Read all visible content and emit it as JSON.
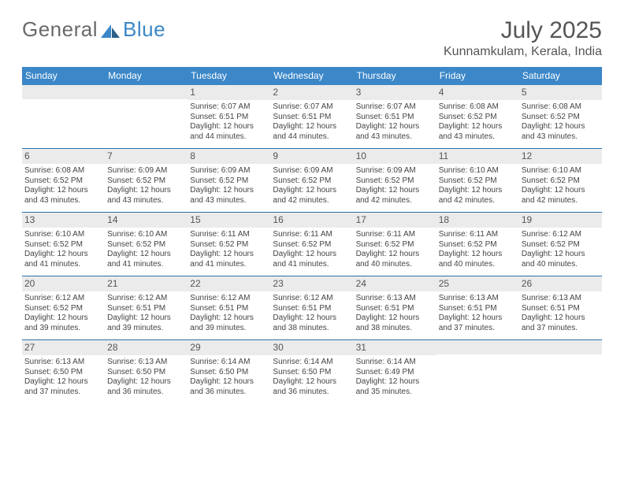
{
  "brand": {
    "part1": "General",
    "part2": "Blue"
  },
  "title": {
    "month": "July 2025",
    "location": "Kunnamkulam, Kerala, India"
  },
  "colors": {
    "accent": "#3b87c8",
    "row_bg": "#ebebeb",
    "divider": "#2f6fa7",
    "page_bg": "#ffffff",
    "header_text": "#555555",
    "body_text": "#333333"
  },
  "dow": [
    "Sunday",
    "Monday",
    "Tuesday",
    "Wednesday",
    "Thursday",
    "Friday",
    "Saturday"
  ],
  "weeks": [
    [
      null,
      null,
      {
        "n": "1",
        "sr": "Sunrise: 6:07 AM",
        "ss": "Sunset: 6:51 PM",
        "d1": "Daylight: 12 hours",
        "d2": "and 44 minutes."
      },
      {
        "n": "2",
        "sr": "Sunrise: 6:07 AM",
        "ss": "Sunset: 6:51 PM",
        "d1": "Daylight: 12 hours",
        "d2": "and 44 minutes."
      },
      {
        "n": "3",
        "sr": "Sunrise: 6:07 AM",
        "ss": "Sunset: 6:51 PM",
        "d1": "Daylight: 12 hours",
        "d2": "and 43 minutes."
      },
      {
        "n": "4",
        "sr": "Sunrise: 6:08 AM",
        "ss": "Sunset: 6:52 PM",
        "d1": "Daylight: 12 hours",
        "d2": "and 43 minutes."
      },
      {
        "n": "5",
        "sr": "Sunrise: 6:08 AM",
        "ss": "Sunset: 6:52 PM",
        "d1": "Daylight: 12 hours",
        "d2": "and 43 minutes."
      }
    ],
    [
      {
        "n": "6",
        "sr": "Sunrise: 6:08 AM",
        "ss": "Sunset: 6:52 PM",
        "d1": "Daylight: 12 hours",
        "d2": "and 43 minutes."
      },
      {
        "n": "7",
        "sr": "Sunrise: 6:09 AM",
        "ss": "Sunset: 6:52 PM",
        "d1": "Daylight: 12 hours",
        "d2": "and 43 minutes."
      },
      {
        "n": "8",
        "sr": "Sunrise: 6:09 AM",
        "ss": "Sunset: 6:52 PM",
        "d1": "Daylight: 12 hours",
        "d2": "and 43 minutes."
      },
      {
        "n": "9",
        "sr": "Sunrise: 6:09 AM",
        "ss": "Sunset: 6:52 PM",
        "d1": "Daylight: 12 hours",
        "d2": "and 42 minutes."
      },
      {
        "n": "10",
        "sr": "Sunrise: 6:09 AM",
        "ss": "Sunset: 6:52 PM",
        "d1": "Daylight: 12 hours",
        "d2": "and 42 minutes."
      },
      {
        "n": "11",
        "sr": "Sunrise: 6:10 AM",
        "ss": "Sunset: 6:52 PM",
        "d1": "Daylight: 12 hours",
        "d2": "and 42 minutes."
      },
      {
        "n": "12",
        "sr": "Sunrise: 6:10 AM",
        "ss": "Sunset: 6:52 PM",
        "d1": "Daylight: 12 hours",
        "d2": "and 42 minutes."
      }
    ],
    [
      {
        "n": "13",
        "sr": "Sunrise: 6:10 AM",
        "ss": "Sunset: 6:52 PM",
        "d1": "Daylight: 12 hours",
        "d2": "and 41 minutes."
      },
      {
        "n": "14",
        "sr": "Sunrise: 6:10 AM",
        "ss": "Sunset: 6:52 PM",
        "d1": "Daylight: 12 hours",
        "d2": "and 41 minutes."
      },
      {
        "n": "15",
        "sr": "Sunrise: 6:11 AM",
        "ss": "Sunset: 6:52 PM",
        "d1": "Daylight: 12 hours",
        "d2": "and 41 minutes."
      },
      {
        "n": "16",
        "sr": "Sunrise: 6:11 AM",
        "ss": "Sunset: 6:52 PM",
        "d1": "Daylight: 12 hours",
        "d2": "and 41 minutes."
      },
      {
        "n": "17",
        "sr": "Sunrise: 6:11 AM",
        "ss": "Sunset: 6:52 PM",
        "d1": "Daylight: 12 hours",
        "d2": "and 40 minutes."
      },
      {
        "n": "18",
        "sr": "Sunrise: 6:11 AM",
        "ss": "Sunset: 6:52 PM",
        "d1": "Daylight: 12 hours",
        "d2": "and 40 minutes."
      },
      {
        "n": "19",
        "sr": "Sunrise: 6:12 AM",
        "ss": "Sunset: 6:52 PM",
        "d1": "Daylight: 12 hours",
        "d2": "and 40 minutes."
      }
    ],
    [
      {
        "n": "20",
        "sr": "Sunrise: 6:12 AM",
        "ss": "Sunset: 6:52 PM",
        "d1": "Daylight: 12 hours",
        "d2": "and 39 minutes."
      },
      {
        "n": "21",
        "sr": "Sunrise: 6:12 AM",
        "ss": "Sunset: 6:51 PM",
        "d1": "Daylight: 12 hours",
        "d2": "and 39 minutes."
      },
      {
        "n": "22",
        "sr": "Sunrise: 6:12 AM",
        "ss": "Sunset: 6:51 PM",
        "d1": "Daylight: 12 hours",
        "d2": "and 39 minutes."
      },
      {
        "n": "23",
        "sr": "Sunrise: 6:12 AM",
        "ss": "Sunset: 6:51 PM",
        "d1": "Daylight: 12 hours",
        "d2": "and 38 minutes."
      },
      {
        "n": "24",
        "sr": "Sunrise: 6:13 AM",
        "ss": "Sunset: 6:51 PM",
        "d1": "Daylight: 12 hours",
        "d2": "and 38 minutes."
      },
      {
        "n": "25",
        "sr": "Sunrise: 6:13 AM",
        "ss": "Sunset: 6:51 PM",
        "d1": "Daylight: 12 hours",
        "d2": "and 37 minutes."
      },
      {
        "n": "26",
        "sr": "Sunrise: 6:13 AM",
        "ss": "Sunset: 6:51 PM",
        "d1": "Daylight: 12 hours",
        "d2": "and 37 minutes."
      }
    ],
    [
      {
        "n": "27",
        "sr": "Sunrise: 6:13 AM",
        "ss": "Sunset: 6:50 PM",
        "d1": "Daylight: 12 hours",
        "d2": "and 37 minutes."
      },
      {
        "n": "28",
        "sr": "Sunrise: 6:13 AM",
        "ss": "Sunset: 6:50 PM",
        "d1": "Daylight: 12 hours",
        "d2": "and 36 minutes."
      },
      {
        "n": "29",
        "sr": "Sunrise: 6:14 AM",
        "ss": "Sunset: 6:50 PM",
        "d1": "Daylight: 12 hours",
        "d2": "and 36 minutes."
      },
      {
        "n": "30",
        "sr": "Sunrise: 6:14 AM",
        "ss": "Sunset: 6:50 PM",
        "d1": "Daylight: 12 hours",
        "d2": "and 36 minutes."
      },
      {
        "n": "31",
        "sr": "Sunrise: 6:14 AM",
        "ss": "Sunset: 6:49 PM",
        "d1": "Daylight: 12 hours",
        "d2": "and 35 minutes."
      },
      null,
      null
    ]
  ]
}
